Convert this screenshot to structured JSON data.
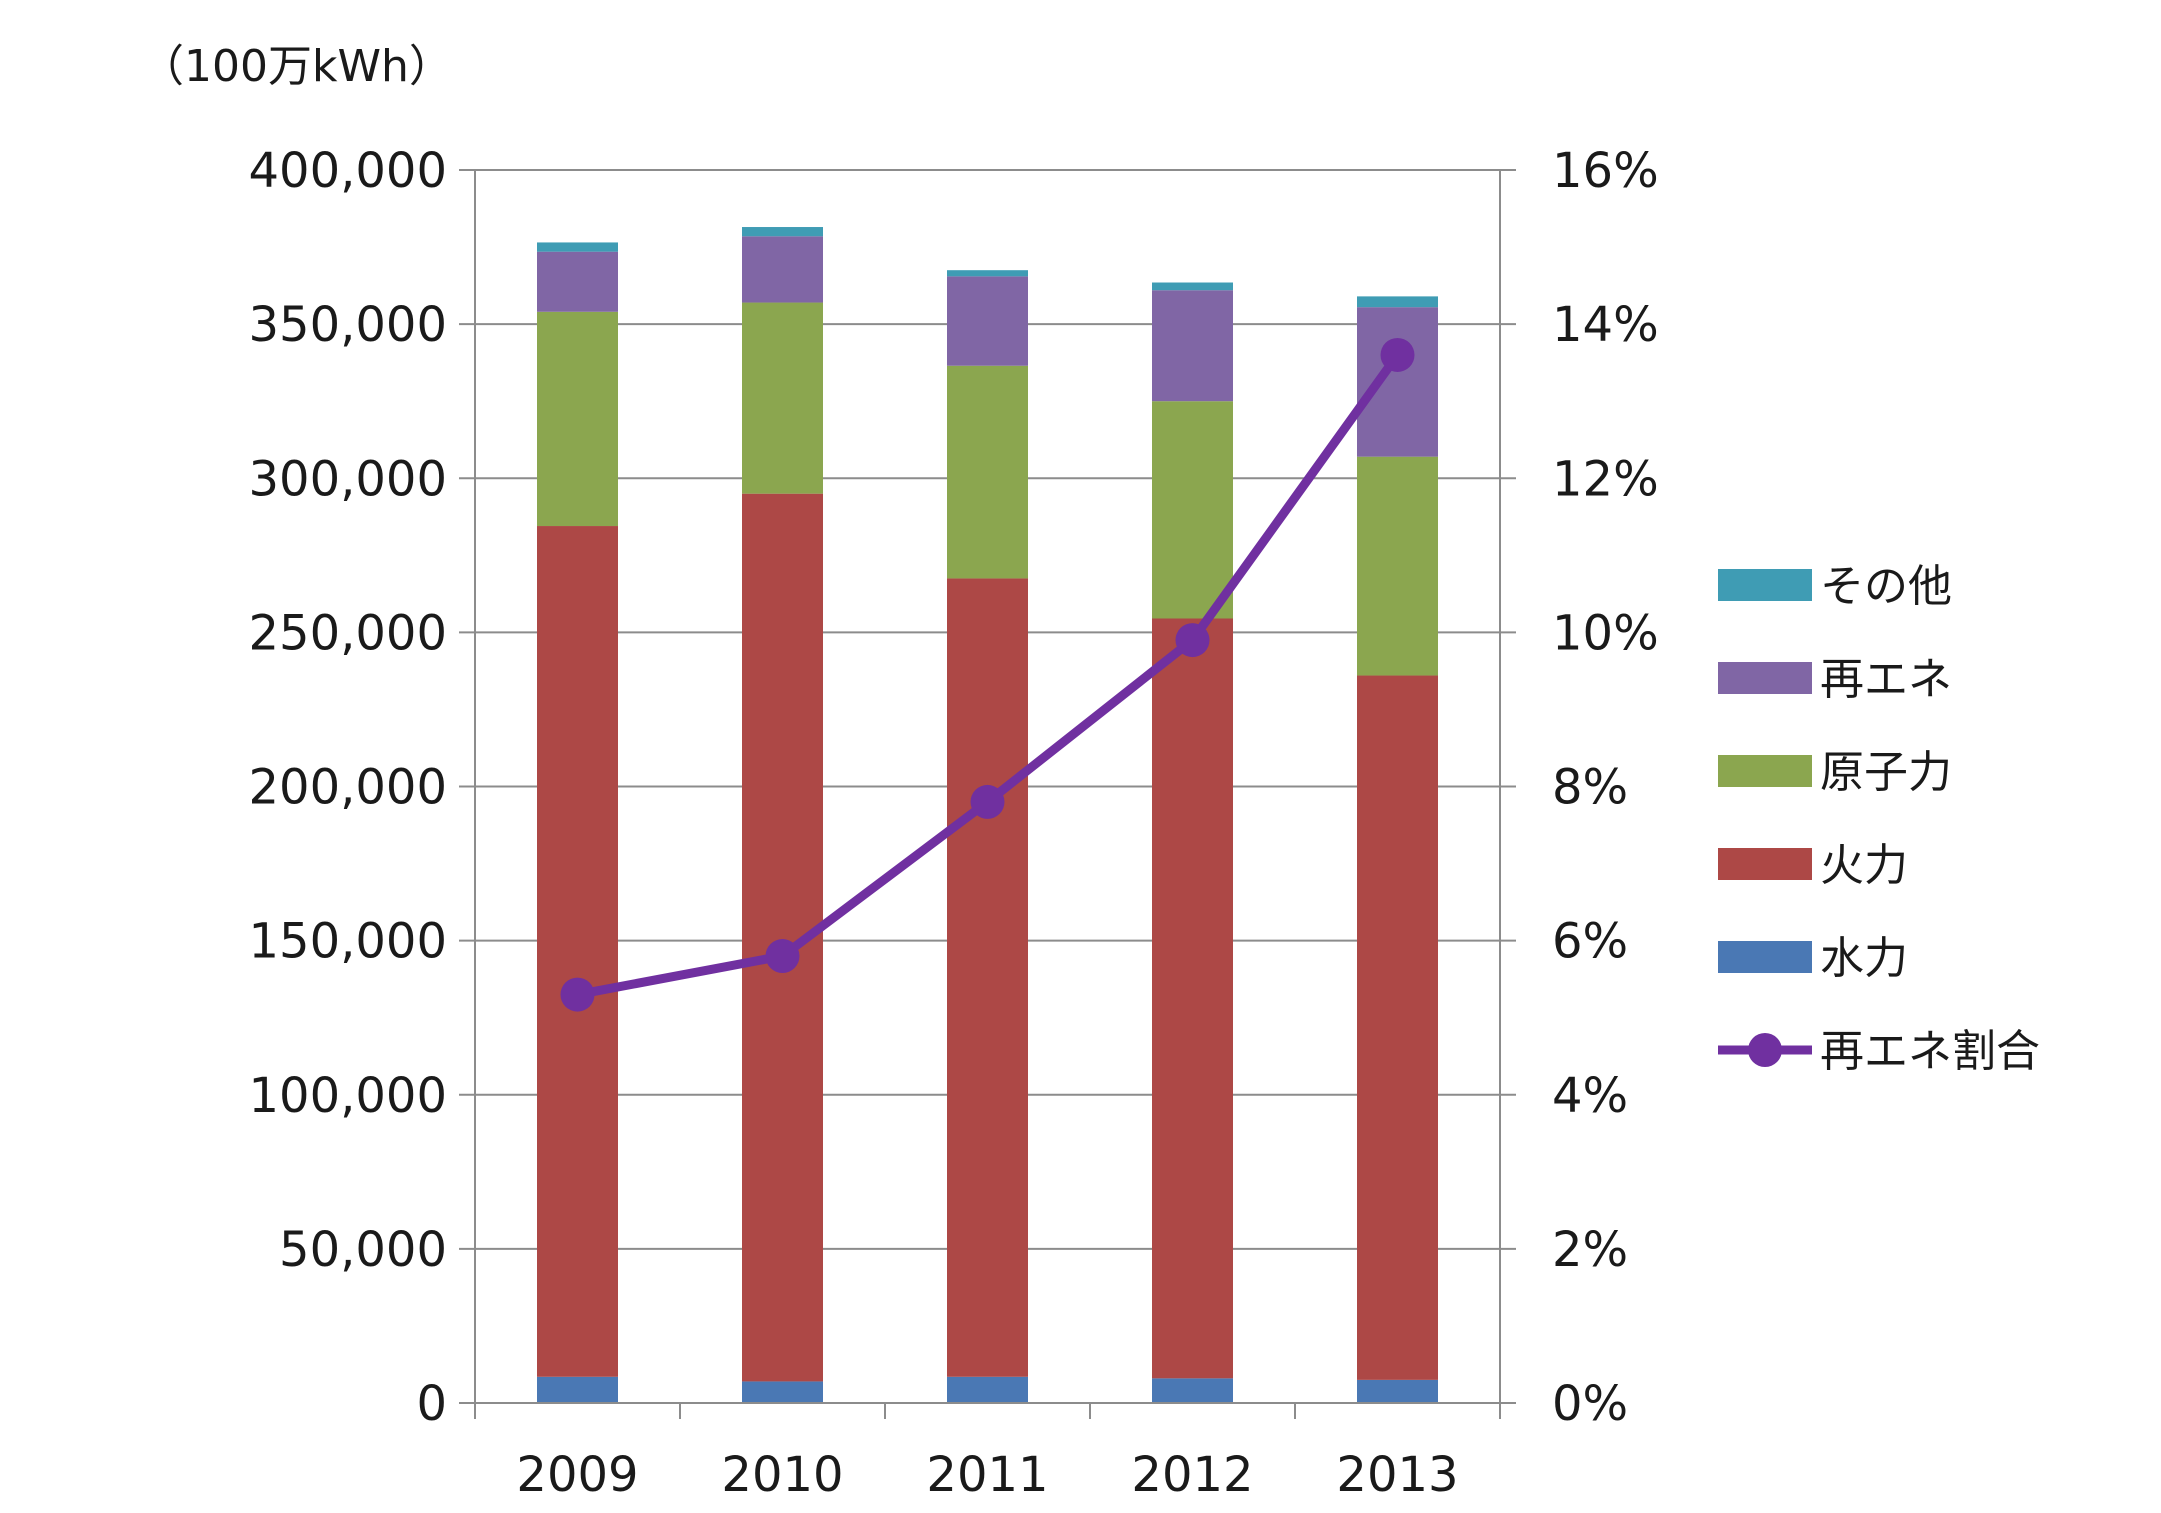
{
  "chart_data": {
    "type": "bar",
    "stacked": true,
    "unit_label": "（100万kWh）",
    "categories": [
      "2009",
      "2010",
      "2011",
      "2012",
      "2013"
    ],
    "y_left": {
      "min": 0,
      "max": 400000,
      "step": 50000,
      "ticks": [
        "0",
        "50,000",
        "100,000",
        "150,000",
        "200,000",
        "250,000",
        "300,000",
        "350,000",
        "400,000"
      ]
    },
    "y_right": {
      "min": 0,
      "max": 16,
      "step": 2,
      "ticks": [
        "0%",
        "2%",
        "4%",
        "6%",
        "8%",
        "10%",
        "12%",
        "14%",
        "16%"
      ]
    },
    "grid": true,
    "legend_position": "right",
    "series": [
      {
        "name": "水力",
        "color": "#4a78b4",
        "values": [
          8500,
          7000,
          8500,
          8000,
          7500
        ]
      },
      {
        "name": "火力",
        "color": "#ad4846",
        "values": [
          276000,
          288000,
          259000,
          246500,
          228500
        ]
      },
      {
        "name": "原子力",
        "color": "#8ba64f",
        "values": [
          69500,
          62000,
          69000,
          70500,
          71000
        ]
      },
      {
        "name": "再エネ",
        "color": "#8066a5",
        "values": [
          19500,
          21500,
          29000,
          36000,
          48500
        ]
      },
      {
        "name": "その他",
        "color": "#3f9cb4",
        "values": [
          3000,
          3000,
          2000,
          2500,
          3500
        ]
      }
    ],
    "line_series": {
      "name": "再エネ割合",
      "color": "#7030a0",
      "axis": "right",
      "values": [
        5.3,
        5.8,
        7.8,
        9.9,
        13.6
      ]
    }
  }
}
